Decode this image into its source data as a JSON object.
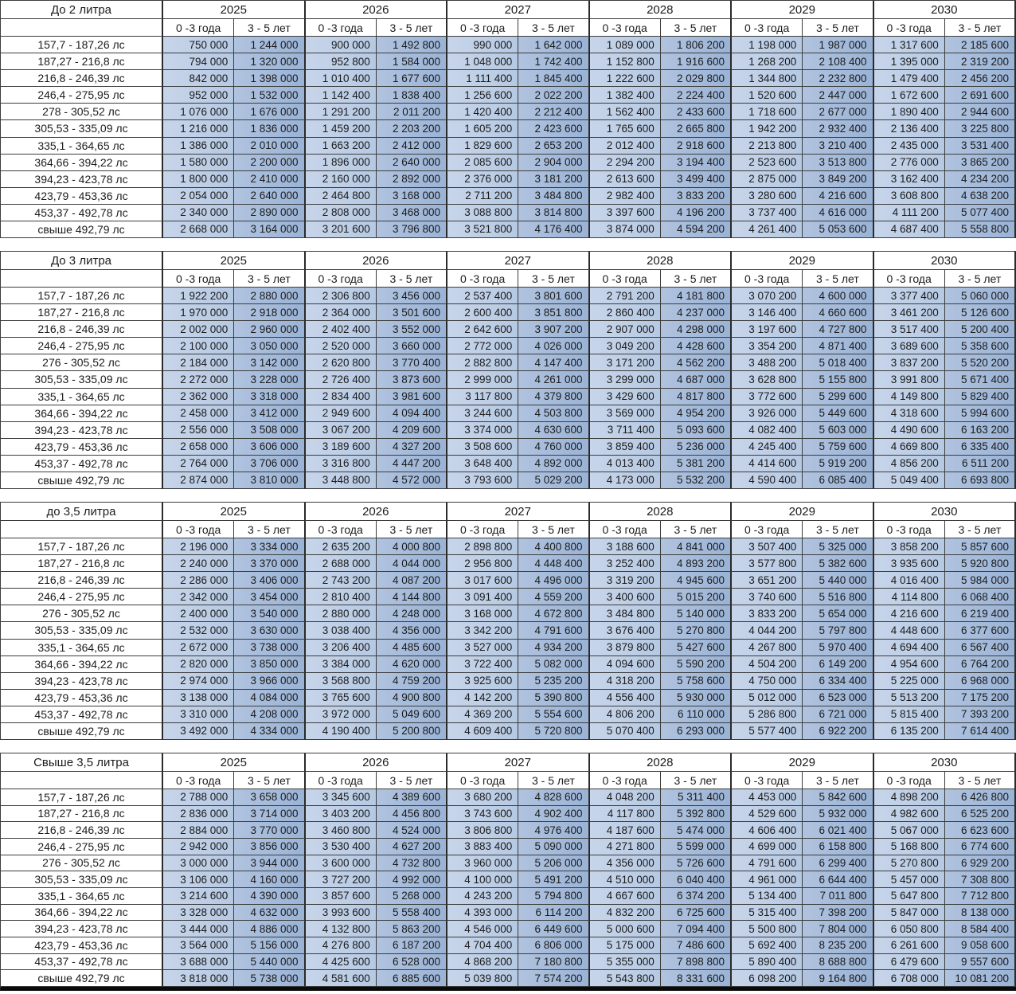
{
  "columns": {
    "years": [
      "2025",
      "2026",
      "2027",
      "2028",
      "2029",
      "2030"
    ],
    "sub_headers": [
      "0 -3 года",
      "3 - 5 лет"
    ]
  },
  "colors": {
    "col_0_3_fill": "#bccde5",
    "col_3_5_fill": "#9fb8da",
    "border": "#3c3c3c",
    "bottom_bar": "#0a0a0a",
    "text": "#1c1c1c"
  },
  "sections": [
    {
      "title": "До 2 литра",
      "row_labels": [
        "157,7  - 187,26 лс",
        "187,27 - 216,8 лс",
        "216,8  - 246,39 лс",
        "246,4  - 275,95 лс",
        "278   - 305,52 лс",
        "305,53 - 335,09 лс",
        "335,1  - 364,65 лс",
        "364,66 - 394,22 лс",
        "394,23 - 423,78 лс",
        "423,79 - 453,36 лс",
        "453,37 - 492,78 лс",
        "свыше 492,79 лс"
      ],
      "rows": [
        [
          "750 000",
          "1 244 000",
          "900 000",
          "1 492 800",
          "990 000",
          "1 642 000",
          "1 089 000",
          "1 806 200",
          "1 198 000",
          "1 987 000",
          "1 317 600",
          "2 185 600"
        ],
        [
          "794 000",
          "1 320 000",
          "952 800",
          "1 584 000",
          "1 048 000",
          "1 742 400",
          "1 152 800",
          "1 916 600",
          "1 268 200",
          "2 108 400",
          "1 395 000",
          "2 319 200"
        ],
        [
          "842 000",
          "1 398 000",
          "1 010 400",
          "1 677 600",
          "1 111 400",
          "1 845 400",
          "1 222 600",
          "2 029 800",
          "1 344 800",
          "2 232 800",
          "1 479 400",
          "2 456 200"
        ],
        [
          "952 000",
          "1 532 000",
          "1 142 400",
          "1 838 400",
          "1 256 600",
          "2 022 200",
          "1 382 400",
          "2 224 400",
          "1 520 600",
          "2 447 000",
          "1 672 600",
          "2 691 600"
        ],
        [
          "1 076 000",
          "1 676 000",
          "1 291 200",
          "2 011 200",
          "1 420 400",
          "2 212 400",
          "1 562 400",
          "2 433 600",
          "1 718 600",
          "2 677 000",
          "1 890 400",
          "2 944 600"
        ],
        [
          "1 216 000",
          "1 836 000",
          "1 459 200",
          "2 203 200",
          "1 605 200",
          "2 423 600",
          "1 765 600",
          "2 665 800",
          "1 942 200",
          "2 932 400",
          "2 136 400",
          "3 225 800"
        ],
        [
          "1 386 000",
          "2 010 000",
          "1 663 200",
          "2 412 000",
          "1 829 600",
          "2 653 200",
          "2 012 400",
          "2 918 600",
          "2 213 800",
          "3 210 400",
          "2 435 000",
          "3 531 400"
        ],
        [
          "1 580 000",
          "2 200 000",
          "1 896 000",
          "2 640 000",
          "2 085 600",
          "2 904 000",
          "2 294 200",
          "3 194 400",
          "2 523 600",
          "3 513 800",
          "2 776 000",
          "3 865 200"
        ],
        [
          "1 800 000",
          "2 410 000",
          "2 160 000",
          "2 892 000",
          "2 376 000",
          "3 181 200",
          "2 613 600",
          "3 499 400",
          "2 875 000",
          "3 849 200",
          "3 162 400",
          "4 234 200"
        ],
        [
          "2 054 000",
          "2 640 000",
          "2 464 800",
          "3 168 000",
          "2 711 200",
          "3 484 800",
          "2 982 400",
          "3 833 200",
          "3 280 600",
          "4 216 600",
          "3 608 800",
          "4 638 200"
        ],
        [
          "2 340 000",
          "2 890 000",
          "2 808 000",
          "3 468 000",
          "3 088 800",
          "3 814 800",
          "3 397 600",
          "4 196 200",
          "3 737 400",
          "4 616 000",
          "4 111 200",
          "5 077 400"
        ],
        [
          "2 668 000",
          "3 164 000",
          "3 201 600",
          "3 796 800",
          "3 521 800",
          "4 176 400",
          "3 874 000",
          "4 594 200",
          "4 261 400",
          "5 053 600",
          "4 687 400",
          "5 558 800"
        ]
      ]
    },
    {
      "title": "До 3 литра",
      "row_labels": [
        "157,7  - 187,26 лс",
        "187,27 - 216,8 лс",
        "216,8  - 246,39 лс",
        "246,4  - 275,95 лс",
        "276   - 305,52 лс",
        "305,53 - 335,09 лс",
        "335,1  - 364,65 лс",
        "364,66 - 394,22 лс",
        "394,23 - 423,78 лс",
        "423,79 - 453,36 лс",
        "453,37 - 492,78 лс",
        "свыше 492,79 лс"
      ],
      "rows": [
        [
          "1 922 200",
          "2 880 000",
          "2 306 800",
          "3 456 000",
          "2 537 400",
          "3 801 600",
          "2 791 200",
          "4 181 800",
          "3 070 200",
          "4 600 000",
          "3 377 400",
          "5 060 000"
        ],
        [
          "1 970 000",
          "2 918 000",
          "2 364 000",
          "3 501 600",
          "2 600 400",
          "3 851 800",
          "2 860 400",
          "4 237 000",
          "3 146 400",
          "4 660 600",
          "3 461 200",
          "5 126 600"
        ],
        [
          "2 002 000",
          "2 960 000",
          "2 402 400",
          "3 552 000",
          "2 642 600",
          "3 907 200",
          "2 907 000",
          "4 298 000",
          "3 197 600",
          "4 727 800",
          "3 517 400",
          "5 200 400"
        ],
        [
          "2 100 000",
          "3 050 000",
          "2 520 000",
          "3 660 000",
          "2 772 000",
          "4 026 000",
          "3 049 200",
          "4 428 600",
          "3 354 200",
          "4 871 400",
          "3 689 600",
          "5 358 600"
        ],
        [
          "2 184 000",
          "3 142 000",
          "2 620 800",
          "3 770 400",
          "2 882 800",
          "4 147 400",
          "3 171 200",
          "4 562 200",
          "3 488 200",
          "5 018 400",
          "3 837 200",
          "5 520 200"
        ],
        [
          "2 272 000",
          "3 228 000",
          "2 726 400",
          "3 873 600",
          "2 999 000",
          "4 261 000",
          "3 299 000",
          "4 687 000",
          "3 628 800",
          "5 155 800",
          "3 991 800",
          "5 671 400"
        ],
        [
          "2 362 000",
          "3 318 000",
          "2 834 400",
          "3 981 600",
          "3 117 800",
          "4 379 800",
          "3 429 600",
          "4 817 800",
          "3 772 600",
          "5 299 600",
          "4 149 800",
          "5 829 400"
        ],
        [
          "2 458 000",
          "3 412 000",
          "2 949 600",
          "4 094 400",
          "3 244 600",
          "4 503 800",
          "3 569 000",
          "4 954 200",
          "3 926 000",
          "5 449 600",
          "4 318 600",
          "5 994 600"
        ],
        [
          "2 556 000",
          "3 508 000",
          "3 067 200",
          "4 209 600",
          "3 374 000",
          "4 630 600",
          "3 711 400",
          "5 093 600",
          "4 082 400",
          "5 603 000",
          "4 490 600",
          "6 163 200"
        ],
        [
          "2 658 000",
          "3 606 000",
          "3 189 600",
          "4 327 200",
          "3 508 600",
          "4 760 000",
          "3 859 400",
          "5 236 000",
          "4 245 400",
          "5 759 600",
          "4 669 800",
          "6 335 400"
        ],
        [
          "2 764 000",
          "3 706 000",
          "3 316 800",
          "4 447 200",
          "3 648 400",
          "4 892 000",
          "4 013 400",
          "5 381 200",
          "4 414 600",
          "5 919 200",
          "4 856 200",
          "6 511 200"
        ],
        [
          "2 874 000",
          "3 810 000",
          "3 448 800",
          "4 572 000",
          "3 793 600",
          "5 029 200",
          "4 173 000",
          "5 532 200",
          "4 590 400",
          "6 085 400",
          "5 049 400",
          "6 693 800"
        ]
      ]
    },
    {
      "title": "до 3,5 литра",
      "row_labels": [
        "157,7  - 187,26 лс",
        "187,27 - 216,8 лс",
        "216,8  - 246,39 лс",
        "246,4  - 275,95 лс",
        "276   - 305,52 лс",
        "305,53 - 335,09 лс",
        "335,1  - 364,65 лс",
        "364,66 - 394,22 лс",
        "394,23 - 423,78 лс",
        "423,79 - 453,36 лс",
        "453,37 - 492,78 лс",
        "свыше 492,79 лс"
      ],
      "rows": [
        [
          "2 196 000",
          "3 334 000",
          "2 635 200",
          "4 000 800",
          "2 898 800",
          "4 400 800",
          "3 188 600",
          "4 841 000",
          "3 507 400",
          "5 325 000",
          "3 858 200",
          "5 857 600"
        ],
        [
          "2 240 000",
          "3 370 000",
          "2 688 000",
          "4 044 000",
          "2 956 800",
          "4 448 400",
          "3 252 400",
          "4 893 200",
          "3 577 800",
          "5 382 600",
          "3 935 600",
          "5 920 800"
        ],
        [
          "2 286 000",
          "3 406 000",
          "2 743 200",
          "4 087 200",
          "3 017 600",
          "4 496 000",
          "3 319 200",
          "4 945 600",
          "3 651 200",
          "5 440 000",
          "4 016 400",
          "5 984 000"
        ],
        [
          "2 342 000",
          "3 454 000",
          "2 810 400",
          "4 144 800",
          "3 091 400",
          "4 559 200",
          "3 400 600",
          "5 015 200",
          "3 740 600",
          "5 516 800",
          "4 114 800",
          "6 068 400"
        ],
        [
          "2 400 000",
          "3 540 000",
          "2 880 000",
          "4 248 000",
          "3 168 000",
          "4 672 800",
          "3 484 800",
          "5 140 000",
          "3 833 200",
          "5 654 000",
          "4 216 600",
          "6 219 400"
        ],
        [
          "2 532 000",
          "3 630 000",
          "3 038 400",
          "4 356 000",
          "3 342 200",
          "4 791 600",
          "3 676 400",
          "5 270 800",
          "4 044 200",
          "5 797 800",
          "4 448 600",
          "6 377 600"
        ],
        [
          "2 672 000",
          "3 738 000",
          "3 206 400",
          "4 485 600",
          "3 527 000",
          "4 934 200",
          "3 879 800",
          "5 427 600",
          "4 267 800",
          "5 970 400",
          "4 694 400",
          "6 567 400"
        ],
        [
          "2 820 000",
          "3 850 000",
          "3 384 000",
          "4 620 000",
          "3 722 400",
          "5 082 000",
          "4 094 600",
          "5 590 200",
          "4 504 200",
          "6 149 200",
          "4 954 600",
          "6 764 200"
        ],
        [
          "2 974 000",
          "3 966 000",
          "3 568 800",
          "4 759 200",
          "3 925 600",
          "5 235 200",
          "4 318 200",
          "5 758 600",
          "4 750 000",
          "6 334 400",
          "5 225 000",
          "6 968 000"
        ],
        [
          "3 138 000",
          "4 084 000",
          "3 765 600",
          "4 900 800",
          "4 142 200",
          "5 390 800",
          "4 556 400",
          "5 930 000",
          "5 012 000",
          "6 523 000",
          "5 513 200",
          "7 175 200"
        ],
        [
          "3 310 000",
          "4 208 000",
          "3 972 000",
          "5 049 600",
          "4 369 200",
          "5 554 600",
          "4 806 200",
          "6 110 000",
          "5 286 800",
          "6 721 000",
          "5 815 400",
          "7 393 200"
        ],
        [
          "3 492 000",
          "4 334 000",
          "4 190 400",
          "5 200 800",
          "4 609 400",
          "5 720 800",
          "5 070 400",
          "6 293 000",
          "5 577 400",
          "6 922 200",
          "6 135 200",
          "7 614 400"
        ]
      ]
    },
    {
      "title": "Свыше 3,5 литра",
      "row_labels": [
        "157,7  - 187,26 лс",
        "187,27 - 216,8 лс",
        "216,8  - 246,39 лс",
        "246,4  - 275,95 лс",
        "276   - 305,52 лс",
        "305,53 - 335,09 лс",
        "335,1  - 364,65 лс",
        "364,66 - 394,22 лс",
        "394,23 - 423,78 лс",
        "423,79 - 453,36 лс",
        "453,37 - 492,78 лс",
        "свыше 492,79 лс"
      ],
      "rows": [
        [
          "2 788 000",
          "3 658 000",
          "3 345 600",
          "4 389 600",
          "3 680 200",
          "4 828 600",
          "4 048 200",
          "5 311 400",
          "4 453 000",
          "5 842 600",
          "4 898 200",
          "6 426 800"
        ],
        [
          "2 836 000",
          "3 714 000",
          "3 403 200",
          "4 456 800",
          "3 743 600",
          "4 902 400",
          "4 117 800",
          "5 392 800",
          "4 529 600",
          "5 932 000",
          "4 982 600",
          "6 525 200"
        ],
        [
          "2 884 000",
          "3 770 000",
          "3 460 800",
          "4 524 000",
          "3 806 800",
          "4 976 400",
          "4 187 600",
          "5 474 000",
          "4 606 400",
          "6 021 400",
          "5 067 000",
          "6 623 600"
        ],
        [
          "2 942 000",
          "3 856 000",
          "3 530 400",
          "4 627 200",
          "3 883 400",
          "5 090 000",
          "4 271 800",
          "5 599 000",
          "4 699 000",
          "6 158 800",
          "5 168 800",
          "6 774 600"
        ],
        [
          "3 000 000",
          "3 944 000",
          "3 600 000",
          "4 732 800",
          "3 960 000",
          "5 206 000",
          "4 356 000",
          "5 726 600",
          "4 791 600",
          "6 299 400",
          "5 270 800",
          "6 929 200"
        ],
        [
          "3 106 000",
          "4 160 000",
          "3 727 200",
          "4 992 000",
          "4 100 000",
          "5 491 200",
          "4 510 000",
          "6 040 400",
          "4 961 000",
          "6 644 400",
          "5 457 000",
          "7 308 800"
        ],
        [
          "3 214 600",
          "4 390 000",
          "3 857 600",
          "5 268 000",
          "4 243 200",
          "5 794 800",
          "4 667 600",
          "6 374 200",
          "5 134 400",
          "7 011 800",
          "5 647 800",
          "7 712 800"
        ],
        [
          "3 328 000",
          "4 632 000",
          "3 993 600",
          "5 558 400",
          "4 393 000",
          "6 114 200",
          "4 832 200",
          "6 725 600",
          "5 315 400",
          "7 398 200",
          "5 847 000",
          "8 138 000"
        ],
        [
          "3 444 000",
          "4 886 000",
          "4 132 800",
          "5 863 200",
          "4 546 000",
          "6 449 600",
          "5 000 600",
          "7 094 400",
          "5 500 800",
          "7 804 000",
          "6 050 800",
          "8 584 400"
        ],
        [
          "3 564 000",
          "5 156 000",
          "4 276 800",
          "6 187 200",
          "4 704 400",
          "6 806 000",
          "5 175 000",
          "7 486 600",
          "5 692 400",
          "8 235 200",
          "6 261 600",
          "9 058 600"
        ],
        [
          "3 688 000",
          "5 440 000",
          "4 425 600",
          "6 528 000",
          "4 868 200",
          "7 180 800",
          "5 355 000",
          "7 898 800",
          "5 890 400",
          "8 688 800",
          "6 479 600",
          "9 557 600"
        ],
        [
          "3 818 000",
          "5 738 000",
          "4 581 600",
          "6 885 600",
          "5 039 800",
          "7 574 200",
          "5 543 800",
          "8 331 600",
          "6 098 200",
          "9 164 800",
          "6 708 000",
          "10 081 200"
        ]
      ]
    }
  ]
}
